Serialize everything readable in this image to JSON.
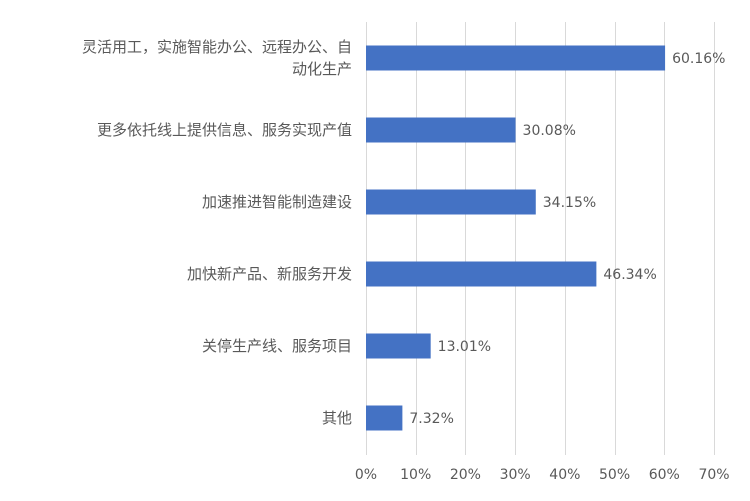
{
  "chart_data": {
    "type": "bar",
    "orientation": "horizontal",
    "categories": [
      "灵活用工，实施智能办公、远程办公、自动化生产",
      "更多依托线上提供信息、服务实现产值",
      "加速推进智能制造建设",
      "加快新产品、新服务开发",
      "关停生产线、服务项目",
      "其他"
    ],
    "category_lines": [
      [
        "灵活用工，实施智能办公、远程办公、自",
        "动化生产"
      ],
      [
        "更多依托线上提供信息、服务实现产值"
      ],
      [
        "加速推进智能制造建设"
      ],
      [
        "加快新产品、新服务开发"
      ],
      [
        "关停生产线、服务项目"
      ],
      [
        "其他"
      ]
    ],
    "values": [
      60.16,
      30.08,
      34.15,
      46.34,
      13.01,
      7.32
    ],
    "data_labels": [
      "60.16%",
      "30.08%",
      "34.15%",
      "46.34%",
      "13.01%",
      "7.32%"
    ],
    "xlim": [
      0,
      70
    ],
    "x_ticks": [
      0,
      10,
      20,
      30,
      40,
      50,
      60,
      70
    ],
    "x_tick_labels": [
      "0%",
      "10%",
      "20%",
      "30%",
      "40%",
      "50%",
      "60%",
      "70%"
    ],
    "title": "",
    "xlabel": "",
    "ylabel": "",
    "grid": "vertical",
    "legend": "none",
    "bar_color": "#4472C4",
    "grid_color": "#D9D9D9",
    "text_color": "#595959"
  }
}
